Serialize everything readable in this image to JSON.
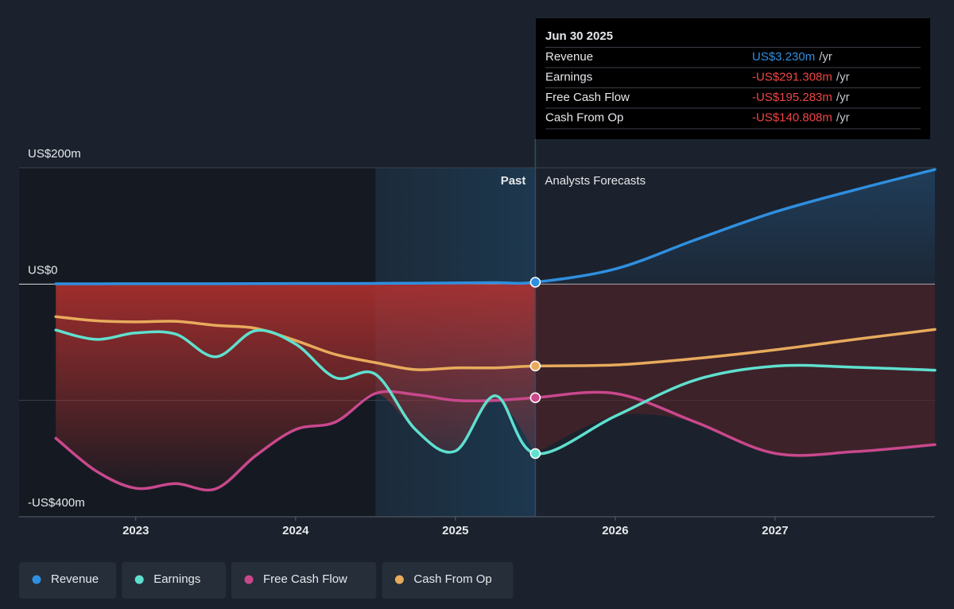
{
  "chart_data": {
    "type": "line",
    "x": [
      2022.5,
      2022.75,
      2023,
      2023.25,
      2023.5,
      2023.75,
      2024,
      2024.25,
      2024.5,
      2024.75,
      2025,
      2025.25,
      2025.5,
      2026,
      2026.5,
      2027,
      2027.5,
      2028
    ],
    "series": [
      {
        "name": "Revenue",
        "color": "#2f8fe0",
        "values": [
          0.5,
          0.5,
          0.6,
          0.6,
          0.7,
          0.8,
          0.9,
          1.0,
          1.2,
          1.5,
          2.0,
          2.5,
          3.23,
          26,
          76,
          124,
          162,
          197
        ]
      },
      {
        "name": "Earnings",
        "color": "#5fe0cf",
        "values": [
          -79,
          -95,
          -84,
          -86,
          -125,
          -80,
          -103,
          -161,
          -155,
          -250,
          -287,
          -192,
          -291.308,
          -227,
          -165,
          -141,
          -143,
          -148
        ]
      },
      {
        "name": "Free Cash Flow",
        "color": "#c9488c",
        "values": [
          -265,
          -321,
          -351,
          -343,
          -352,
          -295,
          -250,
          -237,
          -188,
          -190,
          -200,
          -200,
          -195.283,
          -188,
          -237,
          -291,
          -288,
          -276
        ]
      },
      {
        "name": "Cash From Op",
        "color": "#e8ab5c",
        "values": [
          -56,
          -63,
          -65,
          -64,
          -71,
          -76,
          -97,
          -121,
          -135,
          -147,
          -144,
          -144,
          -140.808,
          -139,
          -128,
          -113,
          -95,
          -78
        ]
      }
    ],
    "xlim": [
      2022.27,
      2028
    ],
    "xticks": [
      2023,
      2024,
      2025,
      2026,
      2027
    ],
    "ylim": [
      -400,
      200
    ],
    "yticks": [
      {
        "value": -400,
        "label": "-US$400m"
      },
      {
        "value": -200,
        "label": null
      },
      {
        "value": 0,
        "label": "US$0"
      },
      {
        "value": 200,
        "label": "US$200m"
      }
    ],
    "grid": true,
    "past_start": 2024.5,
    "forecast_start": 2025.5,
    "annotations": {
      "past": "Past",
      "forecast": "Analysts Forecasts"
    },
    "tooltip": {
      "title": "Jun 30 2025",
      "rows": [
        {
          "label": "Revenue",
          "value": "US$3.230m",
          "unit": "/yr",
          "color": "#2f8fe0"
        },
        {
          "label": "Earnings",
          "value": "-US$291.308m",
          "unit": "/yr",
          "color": "#ef4444"
        },
        {
          "label": "Free Cash Flow",
          "value": "-US$195.283m",
          "unit": "/yr",
          "color": "#ef4444"
        },
        {
          "label": "Cash From Op",
          "value": "-US$140.808m",
          "unit": "/yr",
          "color": "#ef4444"
        }
      ]
    }
  }
}
